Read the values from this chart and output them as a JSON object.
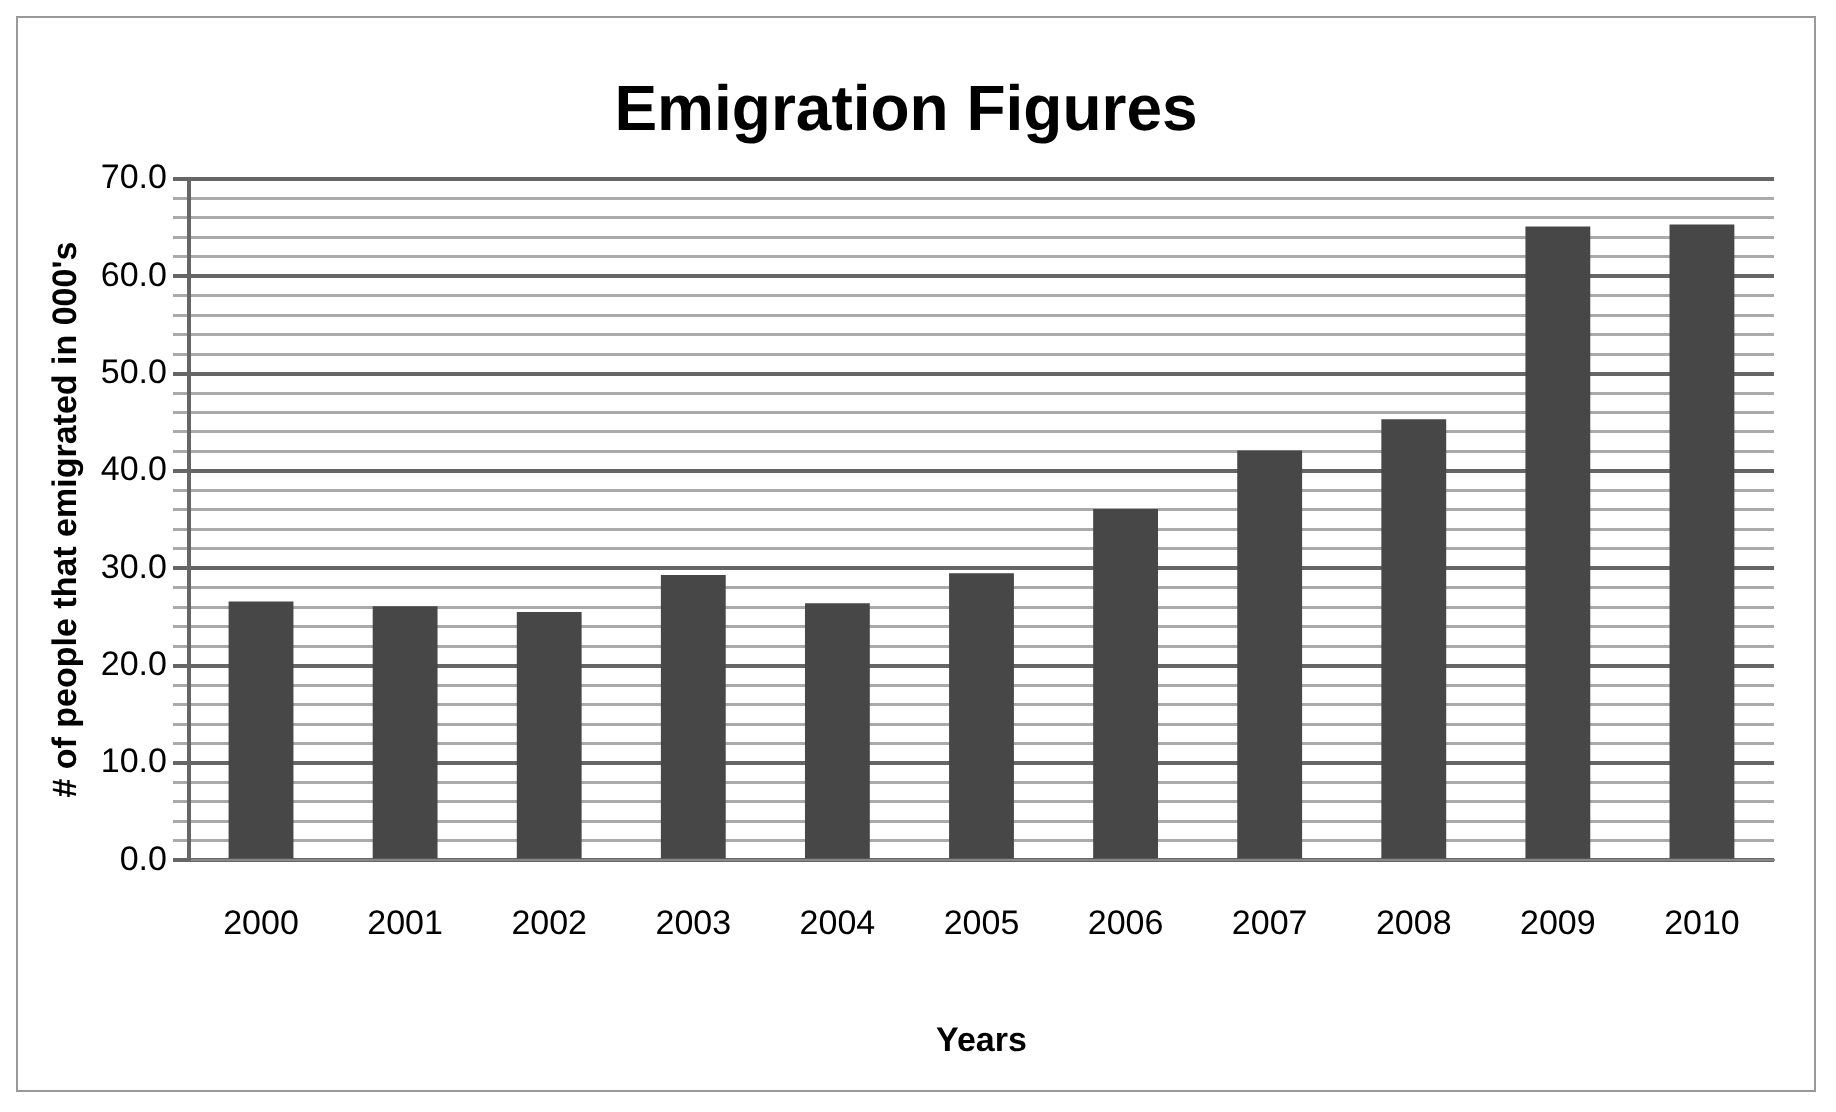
{
  "chart_data": {
    "type": "bar",
    "title": "Emigration Figures",
    "xlabel": "Years",
    "ylabel": "# of people that emigrated in 000's",
    "categories": [
      "2000",
      "2001",
      "2002",
      "2003",
      "2004",
      "2005",
      "2006",
      "2007",
      "2008",
      "2009",
      "2010"
    ],
    "values": [
      26.6,
      26.1,
      25.5,
      29.3,
      26.4,
      29.5,
      36.1,
      42.1,
      45.3,
      65.1,
      65.3
    ],
    "color": "#474747",
    "ylim": [
      0,
      70
    ],
    "yticks": [
      {
        "value": 0,
        "label": "0.0"
      },
      {
        "value": 2,
        "label": null
      },
      {
        "value": 4,
        "label": null
      },
      {
        "value": 6,
        "label": null
      },
      {
        "value": 8,
        "label": null
      },
      {
        "value": 10,
        "label": "10.0"
      },
      {
        "value": 12,
        "label": null
      },
      {
        "value": 14,
        "label": null
      },
      {
        "value": 16,
        "label": null
      },
      {
        "value": 18,
        "label": null
      },
      {
        "value": 20,
        "label": "20.0"
      },
      {
        "value": 22,
        "label": null
      },
      {
        "value": 24,
        "label": null
      },
      {
        "value": 26,
        "label": null
      },
      {
        "value": 28,
        "label": null
      },
      {
        "value": 30,
        "label": "30.0"
      },
      {
        "value": 32,
        "label": null
      },
      {
        "value": 34,
        "label": null
      },
      {
        "value": 36,
        "label": null
      },
      {
        "value": 38,
        "label": null
      },
      {
        "value": 40,
        "label": "40.0"
      },
      {
        "value": 42,
        "label": null
      },
      {
        "value": 44,
        "label": null
      },
      {
        "value": 46,
        "label": null
      },
      {
        "value": 48,
        "label": null
      },
      {
        "value": 50,
        "label": "50.0"
      },
      {
        "value": 52,
        "label": null
      },
      {
        "value": 54,
        "label": null
      },
      {
        "value": 56,
        "label": null
      },
      {
        "value": 58,
        "label": null
      },
      {
        "value": 60,
        "label": "60.0"
      },
      {
        "value": 62,
        "label": null
      },
      {
        "value": 64,
        "label": null
      },
      {
        "value": 66,
        "label": null
      },
      {
        "value": 68,
        "label": null
      },
      {
        "value": 70,
        "label": "70.0"
      }
    ],
    "grid": "y",
    "legend": false
  }
}
